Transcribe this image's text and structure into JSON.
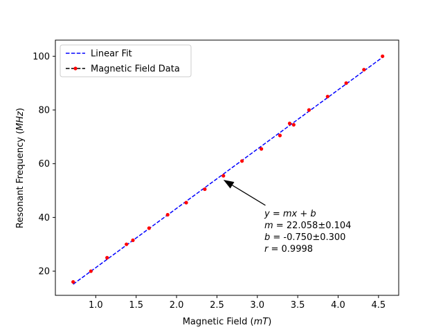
{
  "chart_data": {
    "type": "scatter",
    "title": "",
    "xlabel": "Magnetic Field (",
    "xlabel_unit": "mT",
    "ylabel": "Resonant Frequency (",
    "ylabel_unit": "MHz",
    "label_close": ")",
    "xlim": [
      0.5,
      4.75
    ],
    "ylim": [
      11,
      106
    ],
    "xticks": [
      1.0,
      1.5,
      2.0,
      2.5,
      3.0,
      3.5,
      4.0,
      4.5
    ],
    "xtick_labels": [
      "1.0",
      "1.5",
      "2.0",
      "2.5",
      "3.0",
      "3.5",
      "4.0",
      "4.5"
    ],
    "yticks": [
      20,
      40,
      60,
      80,
      100
    ],
    "ytick_labels": [
      "20",
      "40",
      "60",
      "80",
      "100"
    ],
    "grid": false,
    "legend_position": "top-left",
    "series": [
      {
        "name": "Linear Fit",
        "kind": "line",
        "style": "dashed",
        "color": "#0000ff",
        "x": [
          0.72,
          4.55
        ],
        "y": [
          15.13,
          99.61
        ]
      },
      {
        "name": "Magnetic Field Data",
        "kind": "points",
        "color": "#ff0000",
        "x": [
          0.72,
          0.94,
          1.14,
          1.38,
          1.46,
          1.66,
          1.89,
          2.12,
          2.35,
          2.58,
          2.81,
          3.05,
          3.28,
          3.4,
          3.45,
          3.64,
          3.87,
          4.1,
          4.32,
          4.55
        ],
        "y": [
          16,
          20,
          25,
          30,
          31.5,
          36,
          41,
          45.5,
          50.5,
          55.5,
          61,
          65.5,
          70.5,
          75,
          74.5,
          80,
          85,
          90,
          95,
          100
        ]
      }
    ],
    "annotation": {
      "arrow_start": [
        3.1,
        44.5
      ],
      "arrow_tip": [
        2.58,
        54.0
      ],
      "lines": [
        {
          "prefix": "",
          "italic": "y = mx + b",
          "suffix": ""
        },
        {
          "prefix": "",
          "italic": "m",
          "suffix": " = 22.058±0.104"
        },
        {
          "prefix": "",
          "italic": "b",
          "suffix": " = -0.750±0.300"
        },
        {
          "prefix": "",
          "italic": "r",
          "suffix": " = 0.9998"
        }
      ]
    },
    "colors": {
      "fit": "#0000ff",
      "data": "#ff0000",
      "arrow": "#000000"
    }
  }
}
